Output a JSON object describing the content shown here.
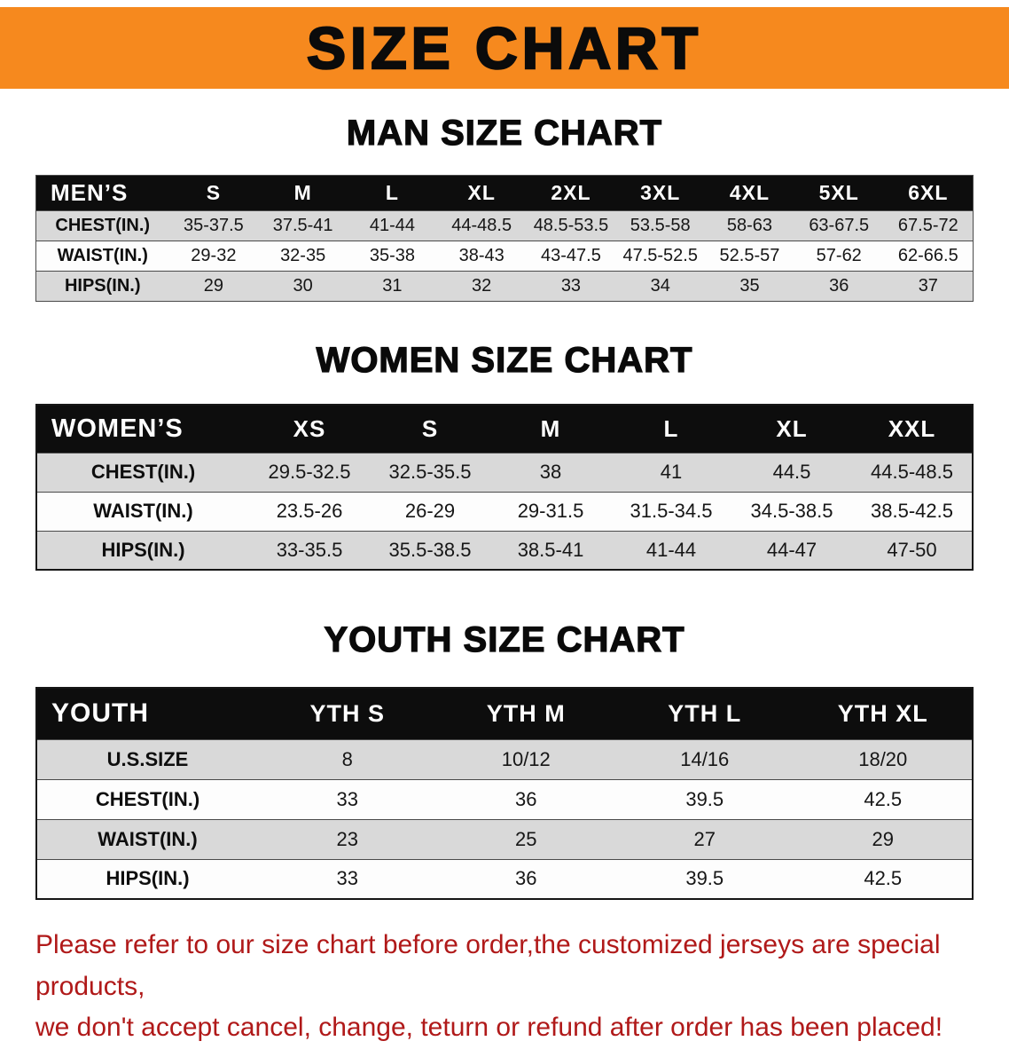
{
  "title_banner": {
    "text": "SIZE CHART"
  },
  "colors": {
    "banner_bg": "#F6891E",
    "table_header_bg": "#0D0D0D",
    "row_stripe": "#D9D9D9",
    "disclaimer_red": "#B01919"
  },
  "men": {
    "heading": "MAN SIZE CHART",
    "table": {
      "header": [
        "MEN’S",
        "S",
        "M",
        "L",
        "XL",
        "2XL",
        "3XL",
        "4XL",
        "5XL",
        "6XL"
      ],
      "rows": [
        [
          "CHEST(IN.)",
          "35-37.5",
          "37.5-41",
          "41-44",
          "44-48.5",
          "48.5-53.5",
          "53.5-58",
          "58-63",
          "63-67.5",
          "67.5-72"
        ],
        [
          "WAIST(IN.)",
          "29-32",
          "32-35",
          "35-38",
          "38-43",
          "43-47.5",
          "47.5-52.5",
          "52.5-57",
          "57-62",
          "62-66.5"
        ],
        [
          "HIPS(IN.)",
          "29",
          "30",
          "31",
          "32",
          "33",
          "34",
          "35",
          "36",
          "37"
        ]
      ]
    }
  },
  "women": {
    "heading": "WOMEN SIZE CHART",
    "table": {
      "header": [
        "WOMEN’S",
        "XS",
        "S",
        "M",
        "L",
        "XL",
        "XXL"
      ],
      "rows": [
        [
          "CHEST(IN.)",
          "29.5-32.5",
          "32.5-35.5",
          "38",
          "41",
          "44.5",
          "44.5-48.5"
        ],
        [
          "WAIST(IN.)",
          "23.5-26",
          "26-29",
          "29-31.5",
          "31.5-34.5",
          "34.5-38.5",
          "38.5-42.5"
        ],
        [
          "HIPS(IN.)",
          "33-35.5",
          "35.5-38.5",
          "38.5-41",
          "41-44",
          "44-47",
          "47-50"
        ]
      ]
    }
  },
  "youth": {
    "heading": "YOUTH SIZE CHART",
    "table": {
      "header": [
        "YOUTH",
        "YTH S",
        "YTH M",
        "YTH L",
        "YTH XL"
      ],
      "rows": [
        [
          "U.S.SIZE",
          "8",
          "10/12",
          "14/16",
          "18/20"
        ],
        [
          "CHEST(IN.)",
          "33",
          "36",
          "39.5",
          "42.5"
        ],
        [
          "WAIST(IN.)",
          "23",
          "25",
          "27",
          "29"
        ],
        [
          "HIPS(IN.)",
          "33",
          "36",
          "39.5",
          "42.5"
        ]
      ]
    }
  },
  "disclaimer": {
    "line1": "Please refer to our size chart before order,the customized jerseys are special products,",
    "line2": "we don't accept cancel, change, teturn or refund after order has been placed!"
  }
}
